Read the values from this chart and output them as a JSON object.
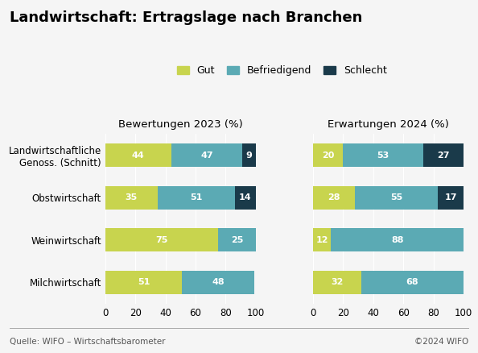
{
  "title": "Landwirtschaft: Ertragslage nach Branchen",
  "categories": [
    "Landwirtschaftliche\nGenoss. (Schnitt)",
    "Obstwirtschaft",
    "Weinwirtschaft",
    "Milchwirtschaft"
  ],
  "left_title": "Bewertungen 2023 (%)",
  "right_title": "Erwartungen 2024 (%)",
  "legend_labels": [
    "Gut",
    "Befriedigend",
    "Schlecht"
  ],
  "colors": [
    "#c8d44e",
    "#5baab4",
    "#1a3a4a"
  ],
  "left_data": {
    "gut": [
      44,
      35,
      75,
      51
    ],
    "befriedigend": [
      47,
      51,
      25,
      48
    ],
    "schlecht": [
      9,
      14,
      0,
      0
    ]
  },
  "right_data": {
    "gut": [
      20,
      28,
      12,
      32
    ],
    "befriedigend": [
      53,
      55,
      88,
      68
    ],
    "schlecht": [
      27,
      17,
      0,
      0
    ]
  },
  "xlim": [
    0,
    100
  ],
  "xticks": [
    0,
    20,
    40,
    60,
    80,
    100
  ],
  "footer_left": "Quelle: WIFO – Wirtschaftsbarometer",
  "footer_right": "©2024 WIFO",
  "bg_color": "#f5f5f5",
  "bar_height": 0.55,
  "fontsize_title": 13,
  "fontsize_subtitle": 9.5,
  "fontsize_bar_label": 8,
  "fontsize_tick": 8.5,
  "fontsize_footer": 7.5,
  "fontsize_legend": 9
}
